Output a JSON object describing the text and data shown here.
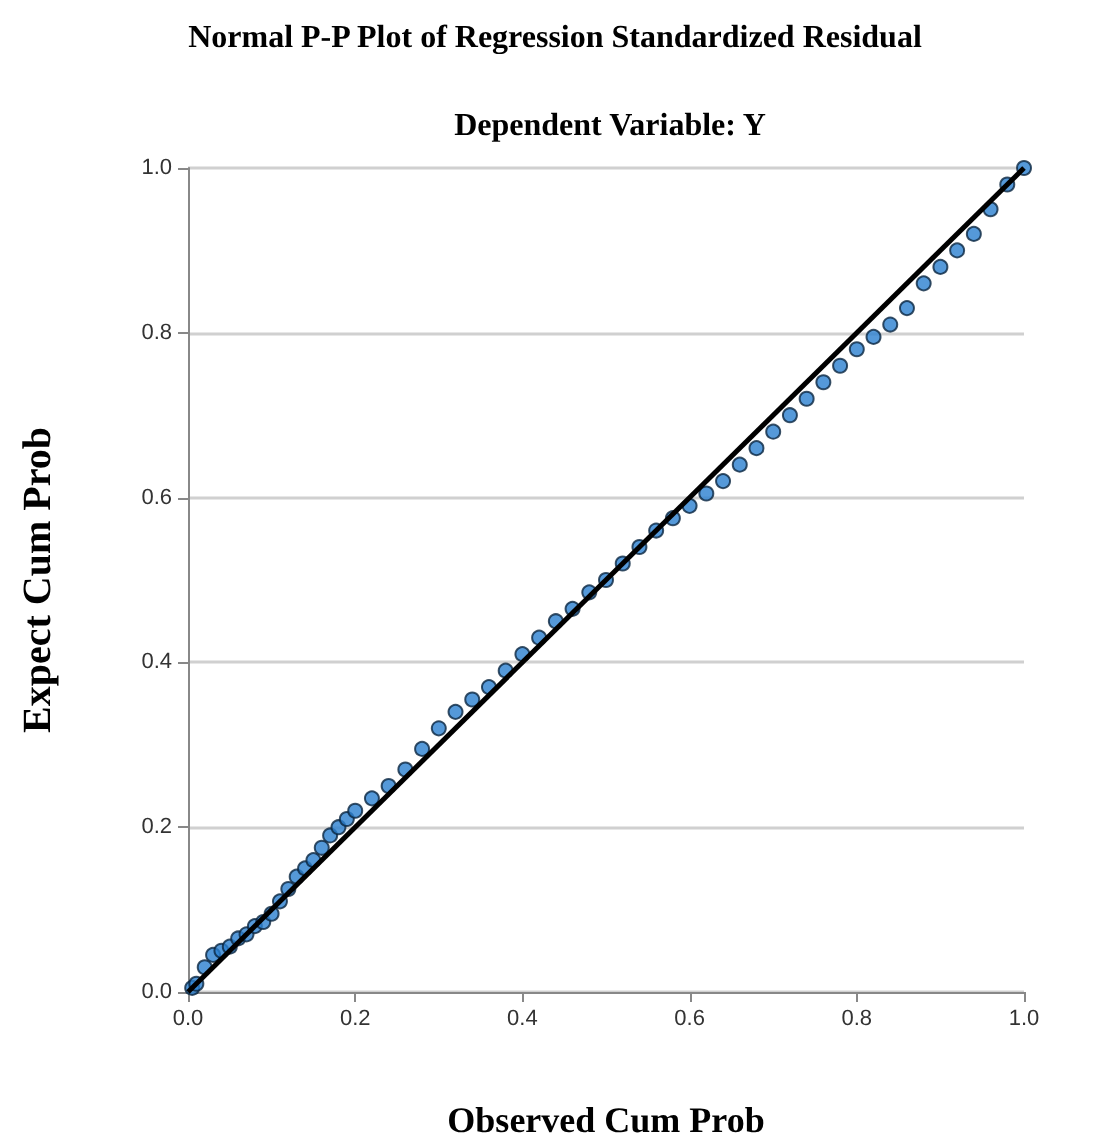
{
  "chart_data": {
    "type": "scatter",
    "title": "Normal P-P Plot of Regression Standardized Residual",
    "subtitle": "Dependent Variable: Y",
    "xlabel": "Observed Cum Prob",
    "ylabel": "Expect Cum Prob",
    "xlim": [
      0,
      1
    ],
    "ylim": [
      0,
      1
    ],
    "xticks": [
      {
        "value": 0,
        "label": "0.0"
      },
      0.2,
      0.4,
      0.6,
      0.8,
      {
        "value": 1,
        "label": "1.0"
      }
    ],
    "yticks": [
      {
        "value": 0,
        "label": "0.0"
      },
      0.2,
      0.4,
      0.6,
      0.8,
      {
        "value": 1,
        "label": "1.0"
      }
    ],
    "grid": "y",
    "marker": "circle",
    "series": [
      {
        "color": "#2b7fd0",
        "x": [
          0.005,
          0.01,
          0.02,
          0.03,
          0.04,
          0.05,
          0.06,
          0.07,
          0.08,
          0.09,
          0.1,
          0.11,
          0.12,
          0.13,
          0.14,
          0.15,
          0.16,
          0.17,
          0.18,
          0.19,
          0.2,
          0.22,
          0.24,
          0.26,
          0.28,
          0.3,
          0.32,
          0.34,
          0.36,
          0.38,
          0.4,
          0.42,
          0.44,
          0.46,
          0.48,
          0.5,
          0.52,
          0.54,
          0.56,
          0.58,
          0.6,
          0.62,
          0.64,
          0.66,
          0.68,
          0.7,
          0.72,
          0.74,
          0.76,
          0.78,
          0.8,
          0.82,
          0.84,
          0.86,
          0.88,
          0.9,
          0.92,
          0.94,
          0.96,
          0.98,
          1.0
        ],
        "values": [
          0.005,
          0.01,
          0.03,
          0.045,
          0.05,
          0.055,
          0.065,
          0.07,
          0.08,
          0.085,
          0.095,
          0.11,
          0.125,
          0.14,
          0.15,
          0.16,
          0.175,
          0.19,
          0.2,
          0.21,
          0.22,
          0.235,
          0.25,
          0.27,
          0.295,
          0.32,
          0.34,
          0.355,
          0.37,
          0.39,
          0.41,
          0.43,
          0.45,
          0.465,
          0.485,
          0.5,
          0.52,
          0.54,
          0.56,
          0.575,
          0.59,
          0.605,
          0.62,
          0.64,
          0.66,
          0.68,
          0.7,
          0.72,
          0.74,
          0.76,
          0.78,
          0.795,
          0.81,
          0.83,
          0.86,
          0.88,
          0.9,
          0.92,
          0.95,
          0.98,
          1.0
        ]
      },
      {
        "type": "line",
        "color": "#000000",
        "x": [
          0,
          1
        ],
        "values": [
          0,
          1
        ],
        "marker": "none",
        "line_style": "solid"
      }
    ]
  }
}
